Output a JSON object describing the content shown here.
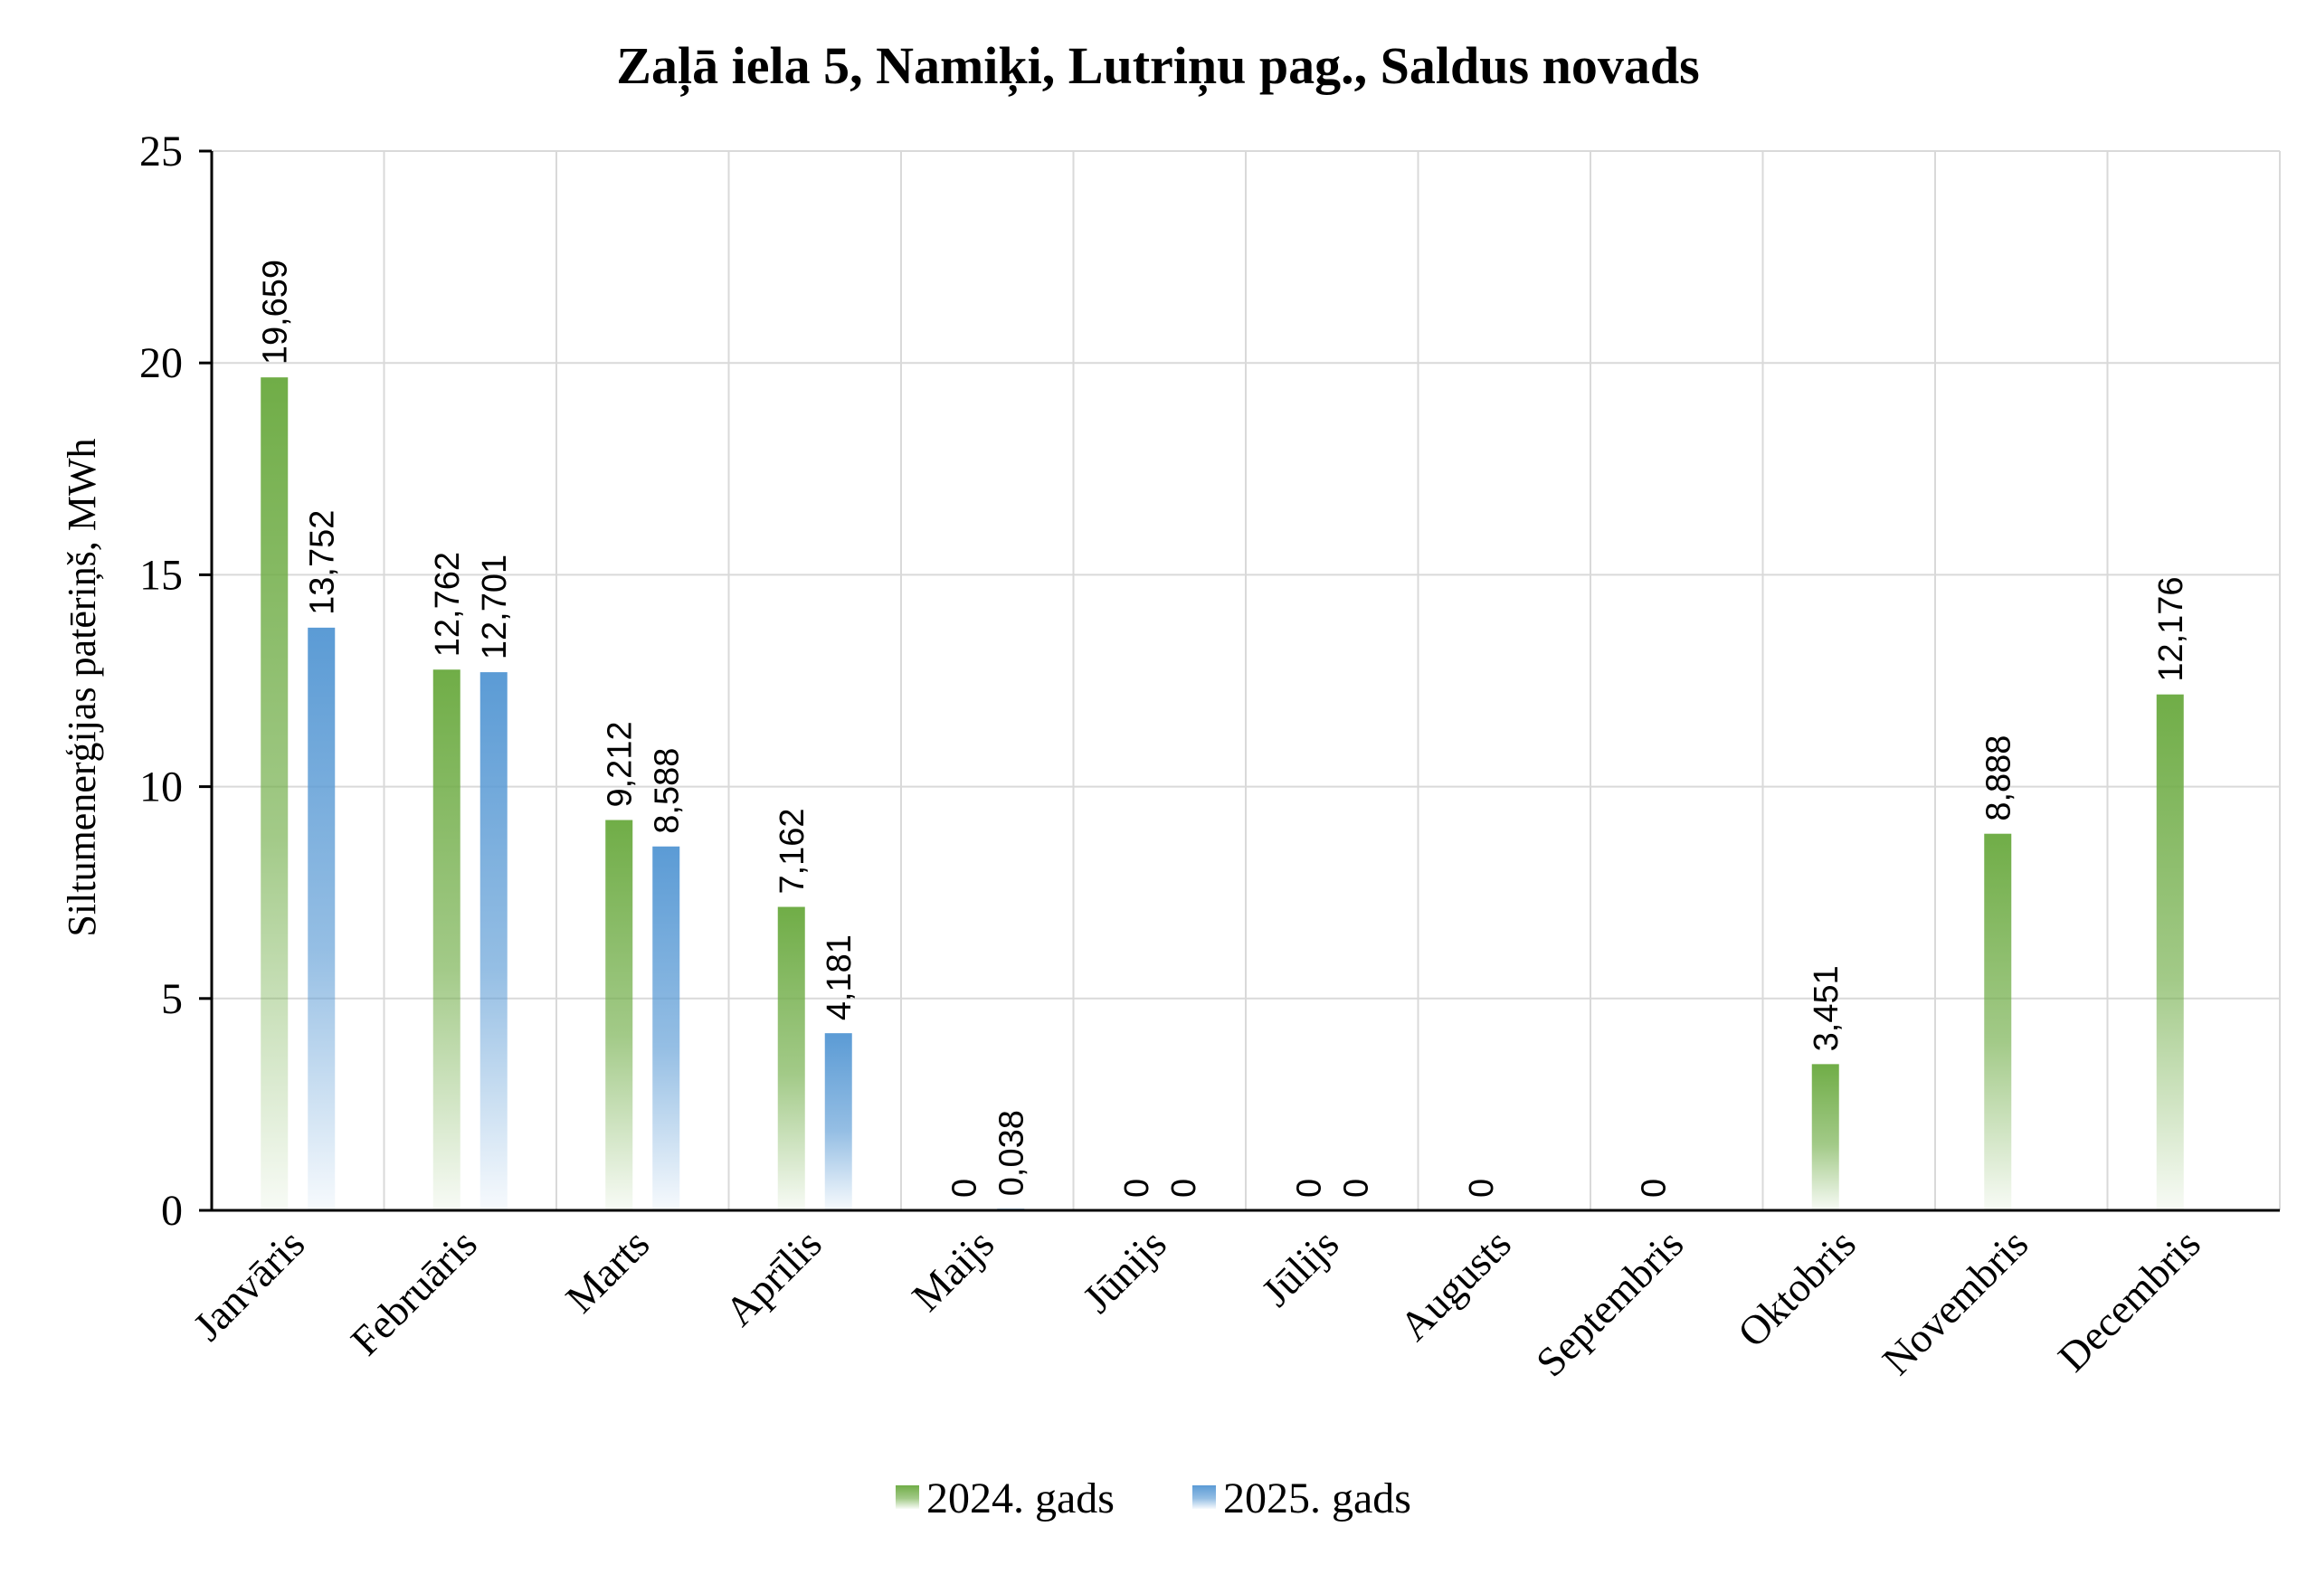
{
  "chart_data": {
    "type": "bar",
    "title": "Zaļā iela 5, Namiķi, Lutriņu pag., Saldus novads",
    "ylabel": "Siltumenerģijas patēriņš, MWh",
    "xlabel": "",
    "ylim": [
      0,
      25
    ],
    "yticks": [
      "0",
      "5",
      "10",
      "15",
      "20",
      "25"
    ],
    "grid": true,
    "legend_position": "bottom",
    "categories": [
      "Janvāris",
      "Februāris",
      "Marts",
      "Aprīlis",
      "Maijs",
      "Jūnijs",
      "Jūlijs",
      "Augusts",
      "Septembris",
      "Oktobris",
      "Novembris",
      "Decembris"
    ],
    "series": [
      {
        "name": "2024. gads",
        "color": "#70ad47",
        "values": [
          19.659,
          12.762,
          9.212,
          7.162,
          0,
          0,
          0,
          0,
          0,
          3.451,
          8.888,
          12.176
        ],
        "labels": [
          "19,659",
          "12,762",
          "9,212",
          "7,162",
          "0",
          "0",
          "0",
          "0",
          "0",
          "3,451",
          "8,888",
          "12,176"
        ]
      },
      {
        "name": "2025. gads",
        "color": "#5b9bd5",
        "values": [
          13.752,
          12.701,
          8.588,
          4.181,
          0.038,
          0,
          0,
          null,
          null,
          null,
          null,
          null
        ],
        "labels": [
          "13,752",
          "12,701",
          "8,588",
          "4,181",
          "0,038",
          "0",
          "0",
          null,
          null,
          null,
          null,
          null
        ]
      }
    ]
  }
}
